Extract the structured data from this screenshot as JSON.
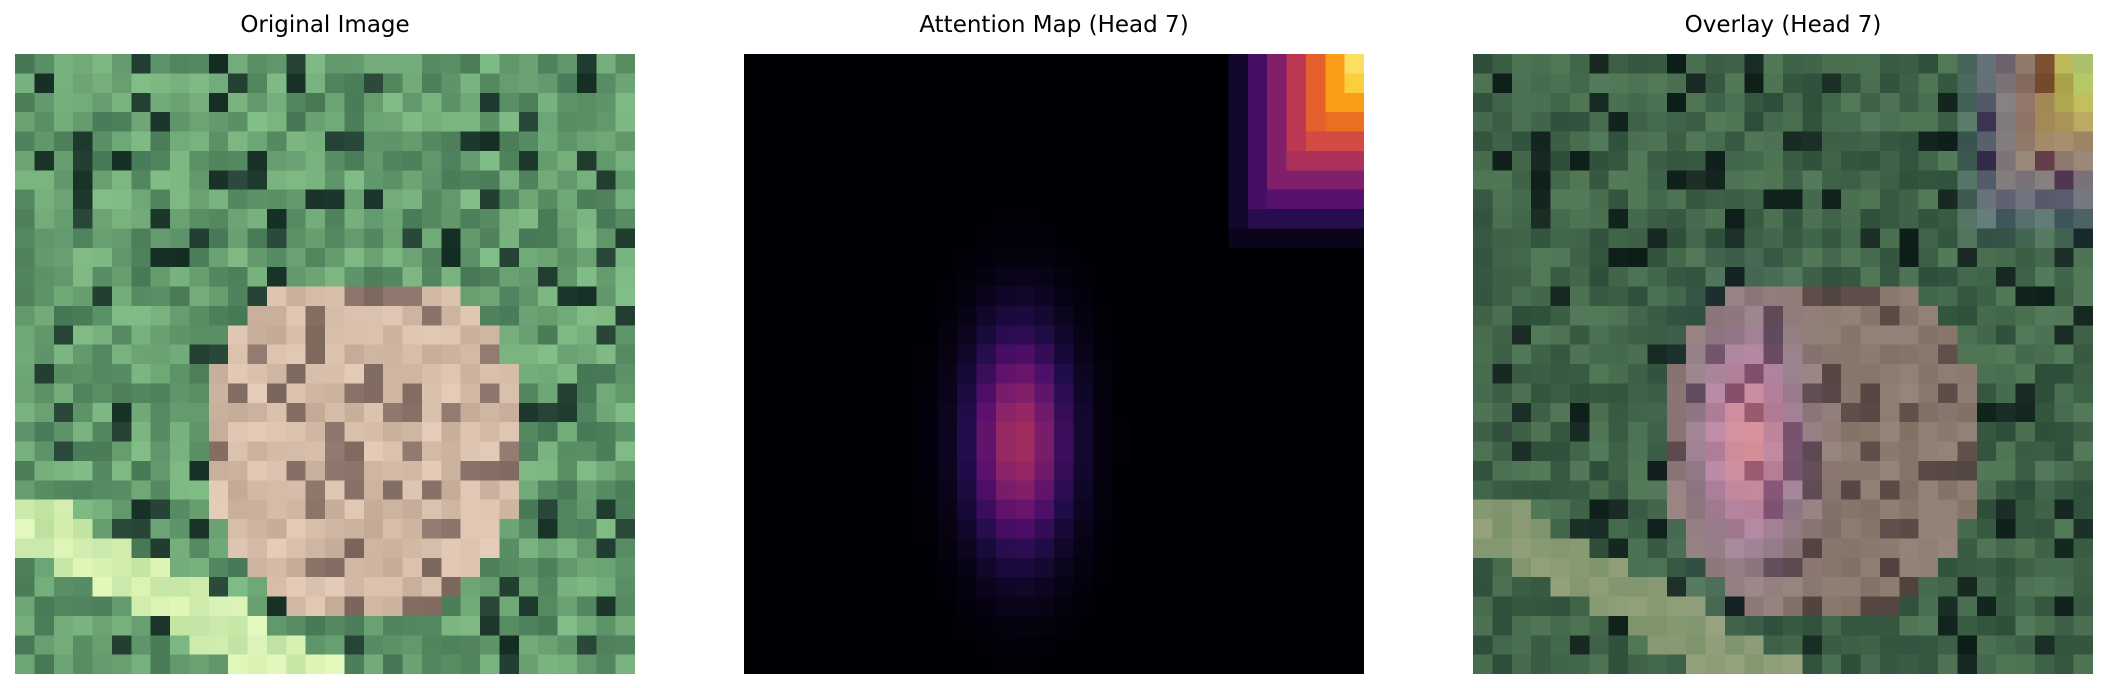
{
  "panels": [
    {
      "title": "Original Image"
    },
    {
      "title": "Attention Map (Head 7)"
    },
    {
      "title": "Overlay (Head 7)"
    }
  ],
  "colormap": "inferno"
}
